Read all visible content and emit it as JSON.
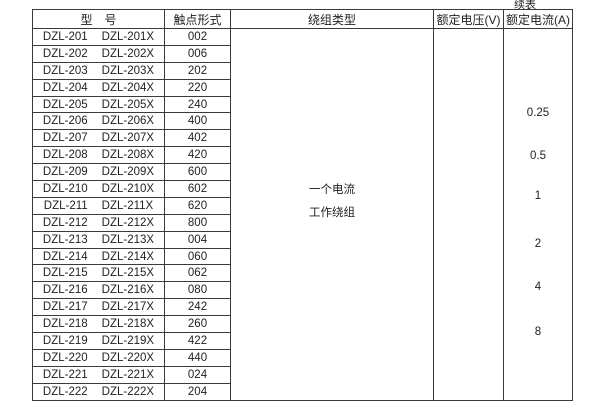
{
  "page": {
    "continued_label": "续表"
  },
  "table": {
    "headers": [
      "型　号",
      "触点形式",
      "绕组类型",
      "额定电压(V)",
      "额定电流(A)"
    ],
    "rows": [
      {
        "model": "DZL-201",
        "model_x": "DZL-201X",
        "contact_form": "002"
      },
      {
        "model": "DZL-202",
        "model_x": "DZL-202X",
        "contact_form": "006"
      },
      {
        "model": "DZL-203",
        "model_x": "DZL-203X",
        "contact_form": "202"
      },
      {
        "model": "DZL-204",
        "model_x": "DZL-204X",
        "contact_form": "220"
      },
      {
        "model": "DZL-205",
        "model_x": "DZL-205X",
        "contact_form": "240"
      },
      {
        "model": "DZL-206",
        "model_x": "DZL-206X",
        "contact_form": "400"
      },
      {
        "model": "DZL-207",
        "model_x": "DZL-207X",
        "contact_form": "402"
      },
      {
        "model": "DZL-208",
        "model_x": "DZL-208X",
        "contact_form": "420"
      },
      {
        "model": "DZL-209",
        "model_x": "DZL-209X",
        "contact_form": "600"
      },
      {
        "model": "DZL-210",
        "model_x": "DZL-210X",
        "contact_form": "602"
      },
      {
        "model": "DZL-211",
        "model_x": "DZL-211X",
        "contact_form": "620"
      },
      {
        "model": "DZL-212",
        "model_x": "DZL-212X",
        "contact_form": "800"
      },
      {
        "model": "DZL-213",
        "model_x": "DZL-213X",
        "contact_form": "004"
      },
      {
        "model": "DZL-214",
        "model_x": "DZL-214X",
        "contact_form": "060"
      },
      {
        "model": "DZL-215",
        "model_x": "DZL-215X",
        "contact_form": "062"
      },
      {
        "model": "DZL-216",
        "model_x": "DZL-216X",
        "contact_form": "080"
      },
      {
        "model": "DZL-217",
        "model_x": "DZL-217X",
        "contact_form": "242"
      },
      {
        "model": "DZL-218",
        "model_x": "DZL-218X",
        "contact_form": "260"
      },
      {
        "model": "DZL-219",
        "model_x": "DZL-219X",
        "contact_form": "422"
      },
      {
        "model": "DZL-220",
        "model_x": "DZL-220X",
        "contact_form": "440"
      },
      {
        "model": "DZL-221",
        "model_x": "DZL-221X",
        "contact_form": "024"
      },
      {
        "model": "DZL-222",
        "model_x": "DZL-222X",
        "contact_form": "204"
      }
    ],
    "winding_type_lines": [
      "一个电流",
      "工作绕组"
    ],
    "rated_voltage_values": [],
    "rated_current_values": [
      "0.25",
      "0.5",
      "1",
      "2",
      "4",
      "8"
    ]
  },
  "colors": {
    "border": "#3a3a3a",
    "text": "#1f1f1f",
    "background": "#ffffff"
  }
}
